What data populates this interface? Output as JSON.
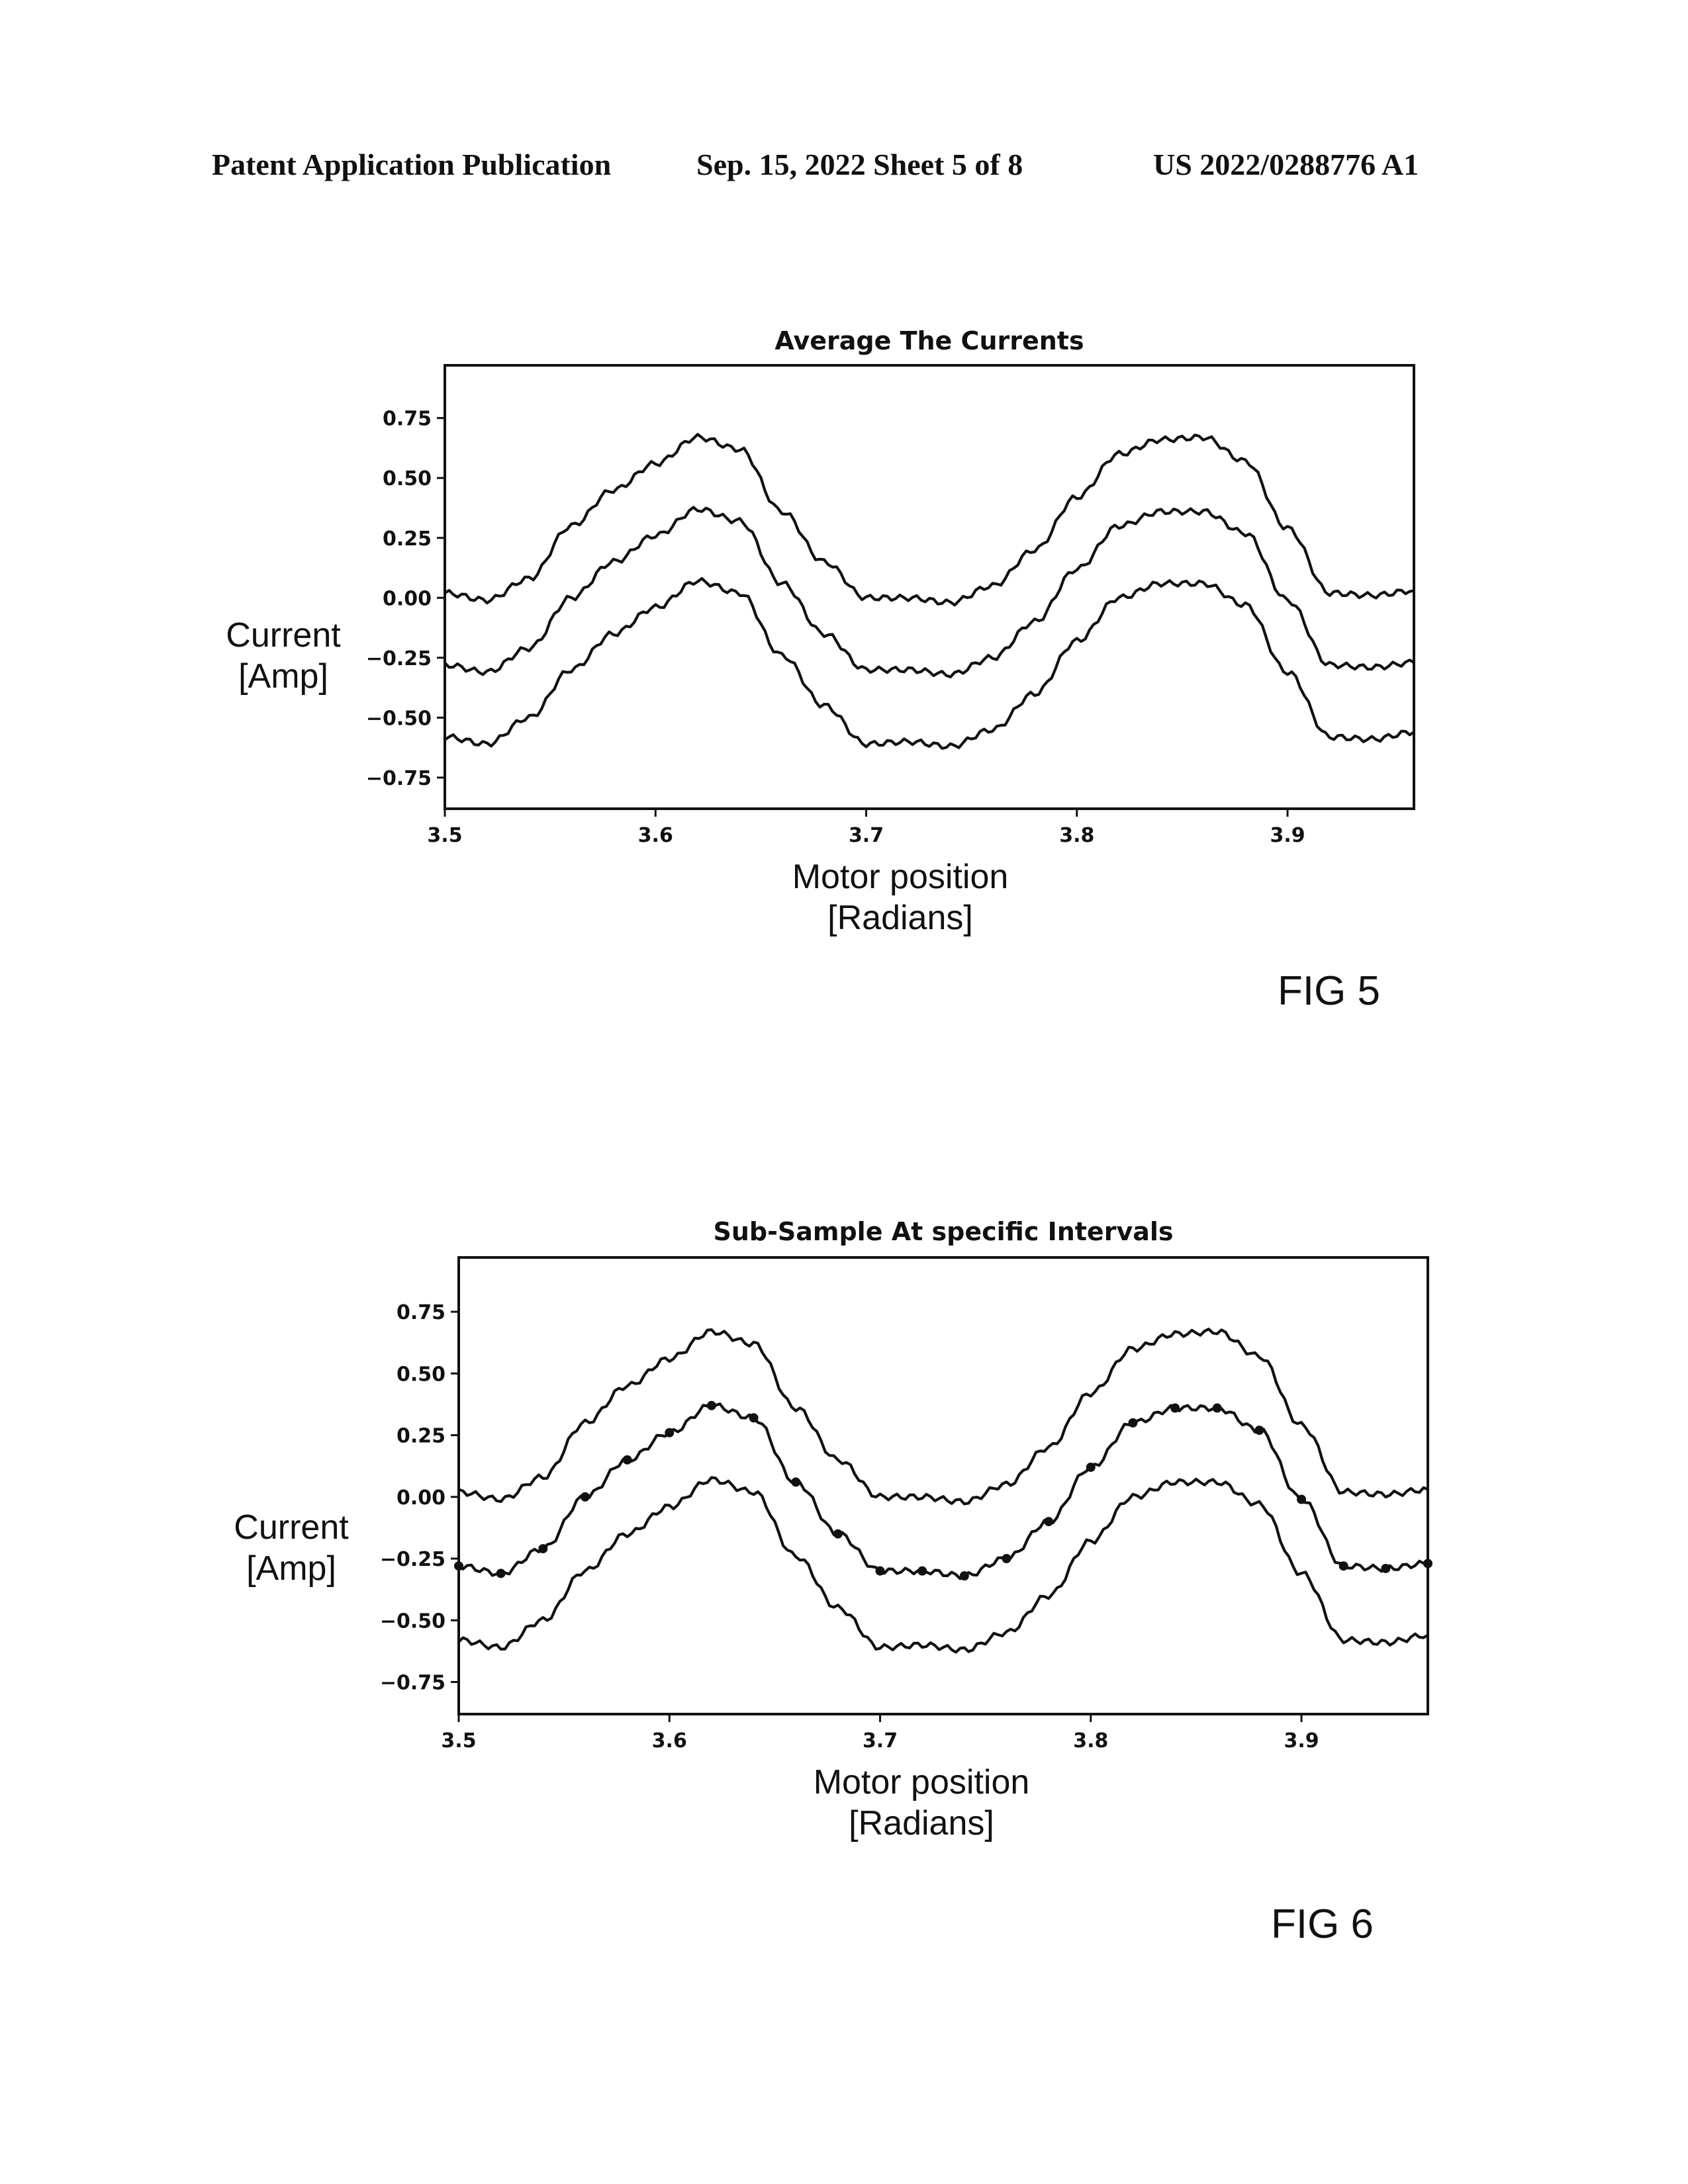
{
  "header": {
    "left": "Patent Application Publication",
    "middle": "Sep. 15, 2022   Sheet 5 of 8",
    "right": "US 2022/0288776 A1"
  },
  "figures": [
    {
      "label": "FIG 5"
    },
    {
      "label": "FIG 6"
    }
  ],
  "chart_data": [
    {
      "type": "line",
      "title": "Average The Currents",
      "xlabel": [
        "Motor position",
        "[Radians]"
      ],
      "ylabel": [
        "Current",
        "[Amp]"
      ],
      "xlim": [
        3.5,
        3.96
      ],
      "ylim": [
        -0.88,
        0.97
      ],
      "xticks": [
        3.5,
        3.6,
        3.7,
        3.8,
        3.9
      ],
      "xtick_labels": [
        "3.5",
        "3.6",
        "3.7",
        "3.8",
        "3.9"
      ],
      "yticks": [
        0.75,
        0.5,
        0.25,
        0.0,
        -0.25,
        -0.5,
        -0.75
      ],
      "ytick_labels": [
        "0.75",
        "0.50",
        "0.25",
        "0.00",
        "−0.25",
        "−0.50",
        "−0.75"
      ],
      "grid": false,
      "series": [
        {
          "x": [
            3.5,
            3.52,
            3.54,
            3.56,
            3.58,
            3.6,
            3.62,
            3.64,
            3.66,
            3.68,
            3.7,
            3.72,
            3.74,
            3.76,
            3.78,
            3.8,
            3.82,
            3.84,
            3.86,
            3.88,
            3.9,
            3.92,
            3.94,
            3.96
          ],
          "y": [
            0.02,
            -0.01,
            0.08,
            0.3,
            0.45,
            0.56,
            0.67,
            0.62,
            0.36,
            0.15,
            0.0,
            0.0,
            -0.02,
            0.05,
            0.2,
            0.42,
            0.6,
            0.66,
            0.67,
            0.57,
            0.29,
            0.02,
            0.01,
            0.03
          ]
        },
        {
          "x": [
            3.5,
            3.52,
            3.54,
            3.56,
            3.58,
            3.6,
            3.62,
            3.64,
            3.66,
            3.68,
            3.7,
            3.72,
            3.74,
            3.76,
            3.78,
            3.8,
            3.82,
            3.84,
            3.86,
            3.88,
            3.9,
            3.92,
            3.94,
            3.96
          ],
          "y": [
            -0.28,
            -0.31,
            -0.21,
            0.0,
            0.15,
            0.26,
            0.37,
            0.32,
            0.06,
            -0.15,
            -0.3,
            -0.3,
            -0.32,
            -0.25,
            -0.1,
            0.12,
            0.3,
            0.36,
            0.36,
            0.27,
            -0.01,
            -0.28,
            -0.29,
            -0.27
          ]
        },
        {
          "x": [
            3.5,
            3.52,
            3.54,
            3.56,
            3.58,
            3.6,
            3.62,
            3.64,
            3.66,
            3.68,
            3.7,
            3.72,
            3.74,
            3.76,
            3.78,
            3.8,
            3.82,
            3.84,
            3.86,
            3.88,
            3.9,
            3.92,
            3.94,
            3.96
          ],
          "y": [
            -0.58,
            -0.61,
            -0.5,
            -0.3,
            -0.15,
            -0.04,
            0.07,
            0.02,
            -0.24,
            -0.45,
            -0.61,
            -0.6,
            -0.62,
            -0.55,
            -0.4,
            -0.18,
            0.0,
            0.06,
            0.06,
            -0.03,
            -0.31,
            -0.58,
            -0.59,
            -0.56
          ]
        }
      ]
    },
    {
      "type": "line",
      "title": "Sub-Sample At specific Intervals",
      "xlabel": [
        "Motor position",
        "[Radians]"
      ],
      "ylabel": [
        "Current",
        "[Amp]"
      ],
      "xlim": [
        3.5,
        3.96
      ],
      "ylim": [
        -0.88,
        0.97
      ],
      "xticks": [
        3.5,
        3.6,
        3.7,
        3.8,
        3.9
      ],
      "xtick_labels": [
        "3.5",
        "3.6",
        "3.7",
        "3.8",
        "3.9"
      ],
      "yticks": [
        0.75,
        0.5,
        0.25,
        0.0,
        -0.25,
        -0.5,
        -0.75
      ],
      "ytick_labels": [
        "0.75",
        "0.50",
        "0.25",
        "0.00",
        "−0.25",
        "−0.50",
        "−0.75"
      ],
      "grid": false,
      "series": [
        {
          "x": [
            3.5,
            3.52,
            3.54,
            3.56,
            3.58,
            3.6,
            3.62,
            3.64,
            3.66,
            3.68,
            3.7,
            3.72,
            3.74,
            3.76,
            3.78,
            3.8,
            3.82,
            3.84,
            3.86,
            3.88,
            3.9,
            3.92,
            3.94,
            3.96
          ],
          "y": [
            0.02,
            -0.01,
            0.08,
            0.3,
            0.45,
            0.56,
            0.67,
            0.62,
            0.36,
            0.15,
            0.0,
            0.0,
            -0.02,
            0.05,
            0.2,
            0.42,
            0.6,
            0.66,
            0.67,
            0.57,
            0.29,
            0.02,
            0.01,
            0.03
          ]
        },
        {
          "x": [
            3.5,
            3.52,
            3.54,
            3.56,
            3.58,
            3.6,
            3.62,
            3.64,
            3.66,
            3.68,
            3.7,
            3.72,
            3.74,
            3.76,
            3.78,
            3.8,
            3.82,
            3.84,
            3.86,
            3.88,
            3.9,
            3.92,
            3.94,
            3.96
          ],
          "y": [
            -0.28,
            -0.31,
            -0.21,
            0.0,
            0.15,
            0.26,
            0.37,
            0.32,
            0.06,
            -0.15,
            -0.3,
            -0.3,
            -0.32,
            -0.25,
            -0.1,
            0.12,
            0.3,
            0.36,
            0.36,
            0.27,
            -0.01,
            -0.28,
            -0.29,
            -0.27
          ],
          "markers": true
        },
        {
          "x": [
            3.5,
            3.52,
            3.54,
            3.56,
            3.58,
            3.6,
            3.62,
            3.64,
            3.66,
            3.68,
            3.7,
            3.72,
            3.74,
            3.76,
            3.78,
            3.8,
            3.82,
            3.84,
            3.86,
            3.88,
            3.9,
            3.92,
            3.94,
            3.96
          ],
          "y": [
            -0.58,
            -0.61,
            -0.5,
            -0.3,
            -0.15,
            -0.04,
            0.07,
            0.02,
            -0.24,
            -0.45,
            -0.61,
            -0.6,
            -0.62,
            -0.55,
            -0.4,
            -0.18,
            0.0,
            0.06,
            0.06,
            -0.03,
            -0.31,
            -0.58,
            -0.59,
            -0.56
          ]
        }
      ]
    }
  ]
}
